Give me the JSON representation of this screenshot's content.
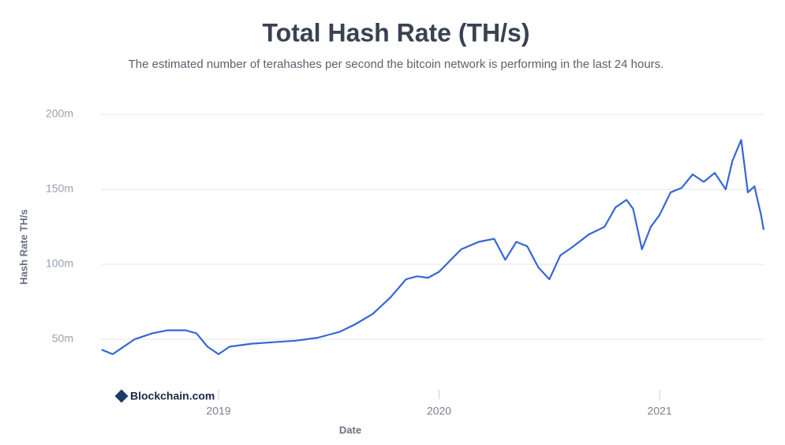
{
  "chart_data": {
    "type": "line",
    "title": "Total Hash Rate (TH/s)",
    "subtitle": "The estimated number of terahashes per second the bitcoin network is performing in the last 24 hours.",
    "x_label": "Date",
    "y_label": "Hash Rate TH/s",
    "watermark": "Blockchain.com",
    "xlim": [
      2018.467,
      2021.472
    ],
    "xticks": [
      2019,
      2020,
      2021
    ],
    "ylim": [
      22600000,
      200000000
    ],
    "yticks": [
      {
        "value": 50000000,
        "label": "50m"
      },
      {
        "value": 100000000,
        "label": "100m"
      },
      {
        "value": 150000000,
        "label": "150m"
      },
      {
        "value": 200000000,
        "label": "200m"
      }
    ],
    "grid": true,
    "x": [
      2018.47,
      2018.52,
      2018.56,
      2018.62,
      2018.7,
      2018.77,
      2018.85,
      2018.9,
      2018.95,
      2019.0,
      2019.05,
      2019.15,
      2019.25,
      2019.35,
      2019.45,
      2019.55,
      2019.62,
      2019.7,
      2019.78,
      2019.85,
      2019.9,
      2019.95,
      2020.0,
      2020.1,
      2020.18,
      2020.25,
      2020.3,
      2020.35,
      2020.4,
      2020.45,
      2020.5,
      2020.55,
      2020.6,
      2020.68,
      2020.75,
      2020.8,
      2020.85,
      2020.88,
      2020.92,
      2020.96,
      2021.0,
      2021.05,
      2021.1,
      2021.15,
      2021.2,
      2021.25,
      2021.3,
      2021.33,
      2021.37,
      2021.4,
      2021.43,
      2021.46,
      2021.472
    ],
    "series": [
      {
        "name": "Hash Rate",
        "color": "#3567d4",
        "values": [
          43000000,
          40000000,
          44000000,
          50000000,
          54000000,
          56000000,
          56000000,
          54000000,
          45000000,
          40000000,
          45000000,
          47000000,
          48000000,
          49000000,
          51000000,
          55000000,
          60000000,
          67000000,
          78000000,
          90000000,
          92000000,
          91000000,
          95000000,
          110000000,
          115000000,
          117000000,
          103000000,
          115000000,
          112000000,
          98000000,
          90000000,
          106000000,
          111000000,
          120000000,
          125000000,
          138000000,
          143000000,
          137000000,
          110000000,
          125000000,
          133000000,
          148000000,
          151000000,
          160000000,
          155000000,
          161000000,
          150000000,
          169000000,
          183000000,
          148000000,
          152000000,
          133000000,
          123000000
        ]
      }
    ]
  }
}
